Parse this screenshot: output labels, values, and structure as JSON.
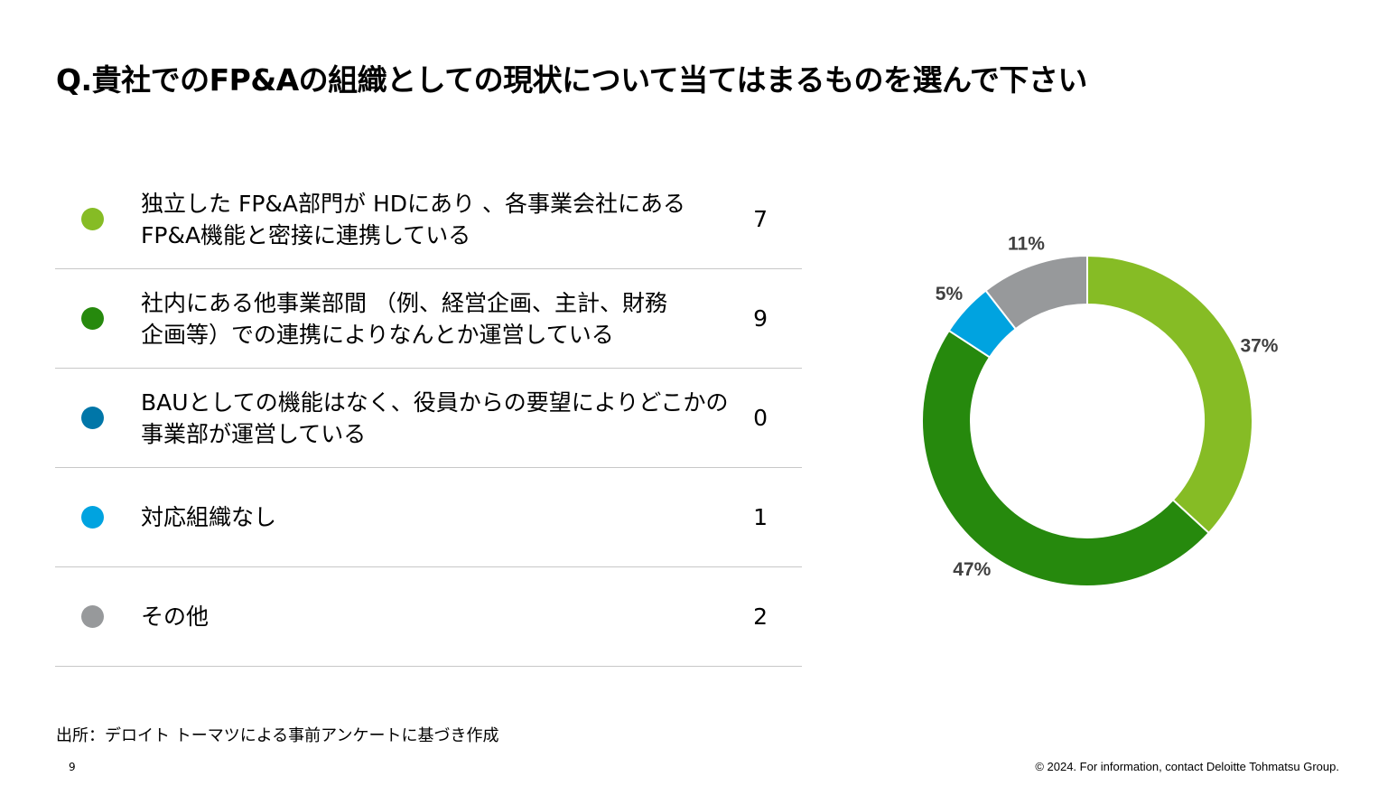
{
  "title": "Q.貴社でのFP&Aの組織としての現状について当てはまるものを選んで下さい",
  "legend": [
    {
      "lines": [
        "独立した FP&A部門が HDにあり 、各事業会社にある",
        "FP&A機能と密接に連携している"
      ],
      "count": "7",
      "color": "#86bc25"
    },
    {
      "lines": [
        "社内にある他事業部間 （例、経営企画、主計、財務",
        "企画等）での連携によりなんとか運営している"
      ],
      "count": "9",
      "color": "#26890d"
    },
    {
      "lines": [
        "BAUとしての機能はなく、役員からの要望によりどこかの",
        "事業部が運営している"
      ],
      "count": "0",
      "color": "#0076a8"
    },
    {
      "lines": [
        "対応組織なし"
      ],
      "count": "1",
      "color": "#00a3e0"
    },
    {
      "lines": [
        "その他"
      ],
      "count": "2",
      "color": "#97999b"
    }
  ],
  "chart_data": {
    "type": "pie",
    "style": "donut",
    "categories": [
      "独立した FP&A部門が HDにあり 、各事業会社にある FP&A機能と密接に連携している",
      "社内にある他事業部間 （例、経営企画、主計、財務 企画等）での連携によりなんとか運営している",
      "BAUとしての機能はなく、役員からの要望によりどこかの 事業部が運営している",
      "対応組織なし",
      "その他"
    ],
    "values": [
      7,
      9,
      0,
      1,
      2
    ],
    "percent_labels": [
      "37%",
      "47%",
      "",
      "5%",
      "11%"
    ],
    "colors": [
      "#86bc25",
      "#26890d",
      "#0076a8",
      "#00a3e0",
      "#97999b"
    ],
    "start": "12 o'clock",
    "direction": "clockwise",
    "legend": "left"
  },
  "source": "出所：デロイト トーマツによる事前アンケートに基づき作成",
  "page_number": "9",
  "copyright": "© 2024. For information, contact Deloitte Tohmatsu Group."
}
